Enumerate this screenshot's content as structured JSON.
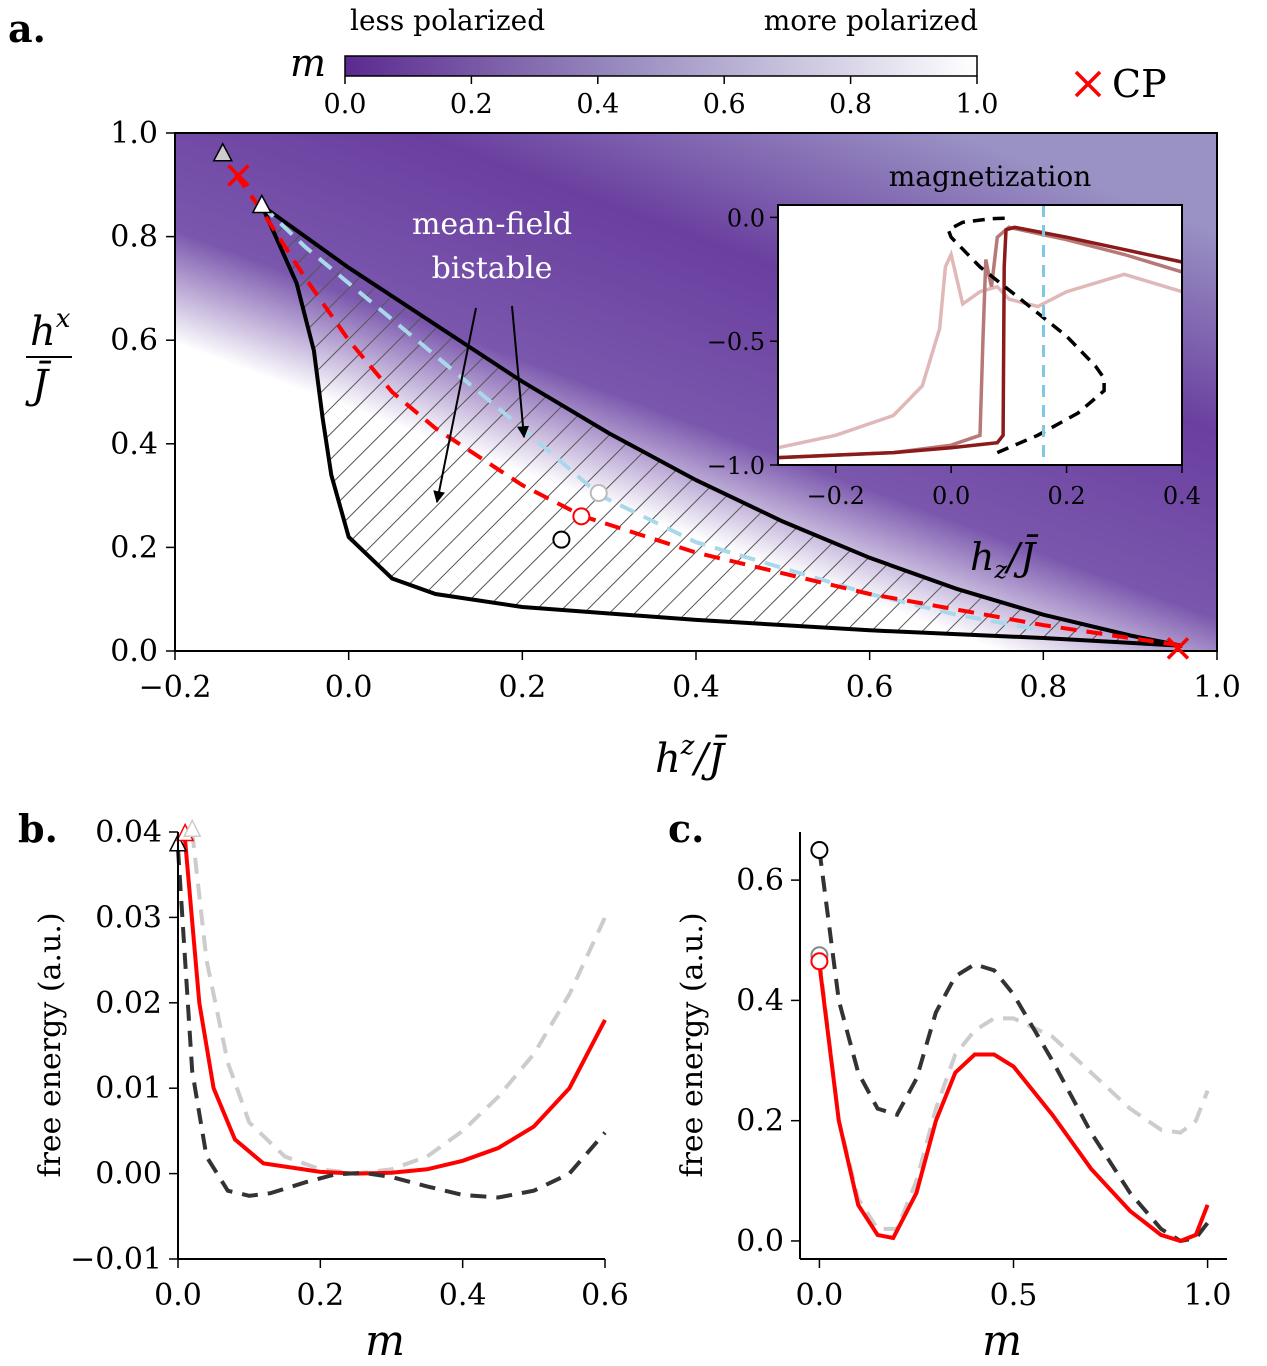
{
  "panels": {
    "a": "a.",
    "b": "b.",
    "c": "c."
  },
  "colorbar": {
    "label": "m",
    "left_text": "less polarized",
    "right_text": "more polarized",
    "ticks": [
      "0.0",
      "0.2",
      "0.4",
      "0.6",
      "0.8",
      "1.0"
    ],
    "colors": [
      "#5b2a90",
      "#ffffff"
    ]
  },
  "legend": {
    "label": "CP",
    "marker_color": "#ff0000"
  },
  "annotations": {
    "bistable_line1": "mean-field",
    "bistable_line2": "bistable",
    "inset_title": "magnetization"
  },
  "chart_data": [
    {
      "id": "a",
      "type": "phase-diagram",
      "xlabel": "h^z / J̄",
      "ylabel": "h^x / J̄",
      "xlim": [
        -0.2,
        1.0
      ],
      "ylim": [
        0.0,
        1.0
      ],
      "xticks": [
        "−0.2",
        "0.0",
        "0.2",
        "0.4",
        "0.6",
        "0.8",
        "1.0"
      ],
      "yticks": [
        "0.0",
        "0.2",
        "0.4",
        "0.6",
        "0.8",
        "1.0"
      ],
      "upper_spinodal": [
        [
          -0.1,
          0.86
        ],
        [
          0.0,
          0.74
        ],
        [
          0.1,
          0.63
        ],
        [
          0.2,
          0.52
        ],
        [
          0.3,
          0.42
        ],
        [
          0.4,
          0.33
        ],
        [
          0.5,
          0.25
        ],
        [
          0.6,
          0.18
        ],
        [
          0.7,
          0.12
        ],
        [
          0.8,
          0.07
        ],
        [
          0.9,
          0.03
        ],
        [
          0.96,
          0.01
        ]
      ],
      "lower_spinodal": [
        [
          -0.1,
          0.86
        ],
        [
          -0.06,
          0.71
        ],
        [
          -0.04,
          0.58
        ],
        [
          -0.03,
          0.45
        ],
        [
          -0.02,
          0.34
        ],
        [
          0.0,
          0.22
        ],
        [
          0.05,
          0.14
        ],
        [
          0.1,
          0.11
        ],
        [
          0.2,
          0.085
        ],
        [
          0.4,
          0.06
        ],
        [
          0.6,
          0.04
        ],
        [
          0.8,
          0.025
        ],
        [
          0.96,
          0.01
        ]
      ],
      "red_dashed": [
        [
          -0.13,
          0.92
        ],
        [
          -0.1,
          0.85
        ],
        [
          -0.05,
          0.72
        ],
        [
          0.0,
          0.6
        ],
        [
          0.05,
          0.5
        ],
        [
          0.1,
          0.43
        ],
        [
          0.2,
          0.32
        ],
        [
          0.27,
          0.26
        ],
        [
          0.4,
          0.19
        ],
        [
          0.6,
          0.11
        ],
        [
          0.8,
          0.05
        ],
        [
          0.96,
          0.01
        ]
      ],
      "blue_dashed": [
        [
          -0.1,
          0.86
        ],
        [
          -0.05,
          0.78
        ],
        [
          0.0,
          0.71
        ],
        [
          0.1,
          0.57
        ],
        [
          0.2,
          0.43
        ],
        [
          0.29,
          0.3
        ],
        [
          0.4,
          0.21
        ],
        [
          0.5,
          0.16
        ],
        [
          0.6,
          0.11
        ],
        [
          0.7,
          0.07
        ],
        [
          0.8,
          0.04
        ]
      ],
      "critical_points": [
        [
          -0.127,
          0.918
        ],
        [
          0.955,
          0.005
        ]
      ],
      "triangles": [
        {
          "x": -0.145,
          "y": 0.96,
          "color": "#cccccc"
        },
        {
          "x": -0.1,
          "y": 0.86,
          "color": "#ffffff"
        }
      ],
      "circles": [
        {
          "x": 0.245,
          "y": 0.215,
          "stroke": "#000000"
        },
        {
          "x": 0.268,
          "y": 0.26,
          "stroke": "#ff0000"
        },
        {
          "x": 0.288,
          "y": 0.305,
          "stroke": "#bbbbbb"
        }
      ]
    },
    {
      "id": "inset",
      "type": "line",
      "title": "magnetization",
      "xlabel": "h_z / J̄",
      "xlim": [
        -0.3,
        0.4
      ],
      "ylim": [
        -1.0,
        0.05
      ],
      "xticks": [
        "−0.2",
        "0.0",
        "0.2",
        "0.4"
      ],
      "yticks": [
        "−1.0",
        "−0.5",
        "0.0"
      ],
      "vline": 0.16,
      "mean_field": [
        [
          0.08,
          -0.95
        ],
        [
          0.15,
          -0.88
        ],
        [
          0.22,
          -0.79
        ],
        [
          0.265,
          -0.7
        ],
        [
          0.265,
          -0.65
        ],
        [
          0.25,
          -0.6
        ],
        [
          0.2,
          -0.48
        ],
        [
          0.12,
          -0.33
        ],
        [
          0.05,
          -0.2
        ],
        [
          0.0,
          -0.08
        ],
        [
          -0.005,
          -0.05
        ],
        [
          0.02,
          -0.02
        ],
        [
          0.07,
          -0.005
        ],
        [
          0.1,
          -0.003
        ]
      ],
      "series": [
        {
          "name": "light",
          "color": "#e0b8b8",
          "points": [
            [
              -0.3,
              -0.93
            ],
            [
              -0.2,
              -0.88
            ],
            [
              -0.1,
              -0.8
            ],
            [
              -0.05,
              -0.68
            ],
            [
              -0.02,
              -0.45
            ],
            [
              -0.01,
              -0.2
            ],
            [
              0.0,
              -0.15
            ],
            [
              0.02,
              -0.35
            ],
            [
              0.05,
              -0.3
            ],
            [
              0.08,
              -0.28
            ],
            [
              0.1,
              -0.33
            ],
            [
              0.15,
              -0.36
            ],
            [
              0.2,
              -0.3
            ],
            [
              0.3,
              -0.23
            ],
            [
              0.4,
              -0.3
            ]
          ]
        },
        {
          "name": "medium",
          "color": "#b87878",
          "points": [
            [
              -0.3,
              -0.97
            ],
            [
              -0.1,
              -0.95
            ],
            [
              0.0,
              -0.92
            ],
            [
              0.05,
              -0.88
            ],
            [
              0.055,
              -0.5
            ],
            [
              0.06,
              -0.17
            ],
            [
              0.065,
              -0.23
            ],
            [
              0.07,
              -0.28
            ],
            [
              0.08,
              -0.08
            ],
            [
              0.1,
              -0.04
            ],
            [
              0.2,
              -0.09
            ],
            [
              0.3,
              -0.15
            ],
            [
              0.4,
              -0.22
            ]
          ]
        },
        {
          "name": "dark",
          "color": "#8b1a1a",
          "points": [
            [
              -0.3,
              -0.97
            ],
            [
              -0.1,
              -0.95
            ],
            [
              0.0,
              -0.93
            ],
            [
              0.08,
              -0.91
            ],
            [
              0.09,
              -0.88
            ],
            [
              0.092,
              -0.2
            ],
            [
              0.095,
              -0.05
            ],
            [
              0.11,
              -0.04
            ],
            [
              0.2,
              -0.08
            ],
            [
              0.3,
              -0.13
            ],
            [
              0.4,
              -0.18
            ]
          ]
        }
      ]
    },
    {
      "id": "b",
      "type": "line",
      "xlabel": "m",
      "ylabel": "free energy (a.u.)",
      "xlim": [
        0.0,
        0.6
      ],
      "ylim": [
        -0.01,
        0.04
      ],
      "xticks": [
        "0.0",
        "0.2",
        "0.4",
        "0.6"
      ],
      "yticks": [
        "−0.01",
        "0.00",
        "0.01",
        "0.02",
        "0.03",
        "0.04"
      ],
      "series": [
        {
          "name": "gray dashed",
          "color": "#cccccc",
          "dash": true,
          "points": [
            [
              0.02,
              0.04
            ],
            [
              0.04,
              0.025
            ],
            [
              0.07,
              0.013
            ],
            [
              0.1,
              0.006
            ],
            [
              0.15,
              0.002
            ],
            [
              0.2,
              0.0005
            ],
            [
              0.25,
              0.0
            ],
            [
              0.3,
              0.0005
            ],
            [
              0.35,
              0.002
            ],
            [
              0.4,
              0.005
            ],
            [
              0.45,
              0.009
            ],
            [
              0.5,
              0.014
            ],
            [
              0.55,
              0.021
            ],
            [
              0.6,
              0.03
            ]
          ]
        },
        {
          "name": "red solid",
          "color": "#ff0000",
          "dash": false,
          "points": [
            [
              0.01,
              0.039
            ],
            [
              0.03,
              0.02
            ],
            [
              0.05,
              0.01
            ],
            [
              0.08,
              0.004
            ],
            [
              0.12,
              0.0012
            ],
            [
              0.2,
              0.0002
            ],
            [
              0.25,
              0.0
            ],
            [
              0.3,
              0.0001
            ],
            [
              0.35,
              0.0005
            ],
            [
              0.4,
              0.0015
            ],
            [
              0.45,
              0.003
            ],
            [
              0.5,
              0.0055
            ],
            [
              0.55,
              0.01
            ],
            [
              0.6,
              0.018
            ]
          ]
        },
        {
          "name": "black dashed",
          "color": "#333333",
          "dash": true,
          "points": [
            [
              0.0,
              0.038
            ],
            [
              0.02,
              0.012
            ],
            [
              0.04,
              0.002
            ],
            [
              0.07,
              -0.002
            ],
            [
              0.1,
              -0.0026
            ],
            [
              0.13,
              -0.0023
            ],
            [
              0.18,
              -0.001
            ],
            [
              0.22,
              -0.0001
            ],
            [
              0.26,
              0.0001
            ],
            [
              0.3,
              -0.0004
            ],
            [
              0.35,
              -0.0015
            ],
            [
              0.4,
              -0.0025
            ],
            [
              0.45,
              -0.0028
            ],
            [
              0.5,
              -0.002
            ],
            [
              0.55,
              0.0
            ],
            [
              0.6,
              0.0048
            ]
          ]
        }
      ],
      "endpoints": [
        {
          "x": 0.0,
          "y": 0.0385,
          "color": "#ffffff"
        },
        {
          "x": 0.01,
          "y": 0.0397,
          "color": "#ff0000"
        },
        {
          "x": 0.02,
          "y": 0.0402,
          "color": "#cccccc"
        }
      ]
    },
    {
      "id": "c",
      "type": "line",
      "xlabel": "m",
      "ylabel": "free energy (a.u.)",
      "xlim": [
        -0.05,
        1.05
      ],
      "ylim": [
        -0.03,
        0.68
      ],
      "xticks": [
        "0.0",
        "0.5",
        "1.0"
      ],
      "yticks": [
        "0.0",
        "0.2",
        "0.4",
        "0.6"
      ],
      "series": [
        {
          "name": "gray dashed",
          "color": "#cccccc",
          "dash": true,
          "points": [
            [
              0.0,
              0.47
            ],
            [
              0.05,
              0.2
            ],
            [
              0.1,
              0.07
            ],
            [
              0.15,
              0.02
            ],
            [
              0.2,
              0.02
            ],
            [
              0.25,
              0.1
            ],
            [
              0.3,
              0.22
            ],
            [
              0.35,
              0.31
            ],
            [
              0.4,
              0.35
            ],
            [
              0.45,
              0.37
            ],
            [
              0.5,
              0.37
            ],
            [
              0.6,
              0.34
            ],
            [
              0.7,
              0.28
            ],
            [
              0.8,
              0.22
            ],
            [
              0.88,
              0.185
            ],
            [
              0.93,
              0.18
            ],
            [
              0.97,
              0.2
            ],
            [
              1.0,
              0.25
            ]
          ]
        },
        {
          "name": "black dashed",
          "color": "#333333",
          "dash": true,
          "points": [
            [
              0.0,
              0.65
            ],
            [
              0.05,
              0.4
            ],
            [
              0.1,
              0.28
            ],
            [
              0.15,
              0.22
            ],
            [
              0.2,
              0.21
            ],
            [
              0.25,
              0.27
            ],
            [
              0.3,
              0.38
            ],
            [
              0.35,
              0.44
            ],
            [
              0.4,
              0.46
            ],
            [
              0.45,
              0.45
            ],
            [
              0.5,
              0.41
            ],
            [
              0.6,
              0.3
            ],
            [
              0.7,
              0.18
            ],
            [
              0.8,
              0.08
            ],
            [
              0.88,
              0.02
            ],
            [
              0.93,
              0.0
            ],
            [
              0.97,
              0.005
            ],
            [
              1.0,
              0.03
            ]
          ]
        },
        {
          "name": "red solid",
          "color": "#ff0000",
          "dash": false,
          "points": [
            [
              0.0,
              0.46
            ],
            [
              0.05,
              0.2
            ],
            [
              0.1,
              0.06
            ],
            [
              0.15,
              0.01
            ],
            [
              0.19,
              0.005
            ],
            [
              0.25,
              0.08
            ],
            [
              0.3,
              0.2
            ],
            [
              0.35,
              0.28
            ],
            [
              0.4,
              0.31
            ],
            [
              0.45,
              0.31
            ],
            [
              0.5,
              0.29
            ],
            [
              0.6,
              0.21
            ],
            [
              0.7,
              0.12
            ],
            [
              0.8,
              0.05
            ],
            [
              0.88,
              0.01
            ],
            [
              0.93,
              0.0
            ],
            [
              0.97,
              0.01
            ],
            [
              1.0,
              0.06
            ]
          ]
        }
      ],
      "endpoints": [
        {
          "x": 0.0,
          "y": 0.65,
          "color": "#000000"
        },
        {
          "x": 0.0,
          "y": 0.475,
          "color": "#888888"
        },
        {
          "x": 0.0,
          "y": 0.465,
          "color": "#ff0000"
        }
      ]
    }
  ]
}
